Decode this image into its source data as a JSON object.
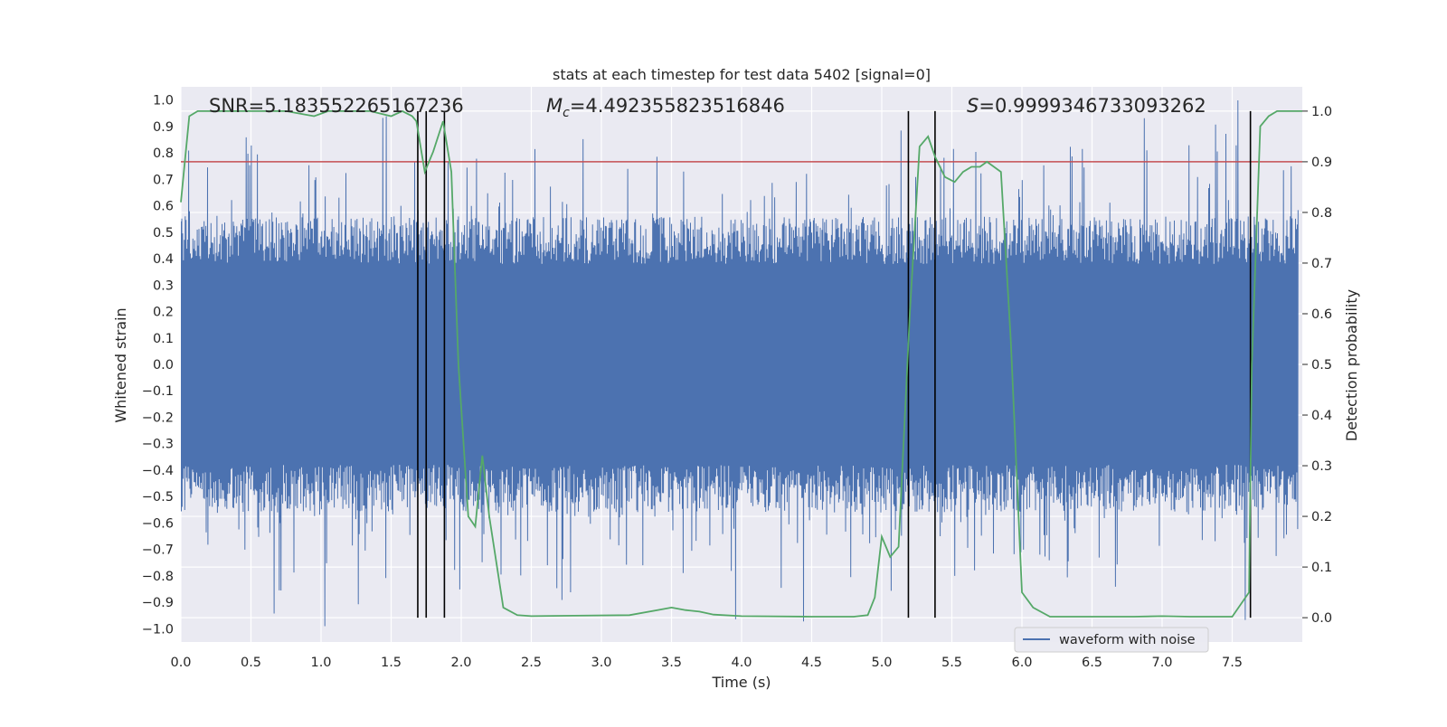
{
  "chart_data": {
    "type": "line",
    "title": "stats at each timestep for test data 5402 [signal=0]",
    "xlabel": "Time (s)",
    "ylabel_left": "Whitened strain",
    "ylabel_right": "Detection probability",
    "xlim": [
      0.0,
      8.0
    ],
    "ylim_left": [
      -1.05,
      1.05
    ],
    "ylim_right": [
      -0.048,
      1.048
    ],
    "x_ticks": [
      "0.0",
      "0.5",
      "1.0",
      "1.5",
      "2.0",
      "2.5",
      "3.0",
      "3.5",
      "4.0",
      "4.5",
      "5.0",
      "5.5",
      "6.0",
      "6.5",
      "7.0",
      "7.5"
    ],
    "x_tick_values": [
      0.0,
      0.5,
      1.0,
      1.5,
      2.0,
      2.5,
      3.0,
      3.5,
      4.0,
      4.5,
      5.0,
      5.5,
      6.0,
      6.5,
      7.0,
      7.5
    ],
    "y_left_ticks": [
      "1.0",
      "0.9",
      "0.8",
      "0.7",
      "0.6",
      "0.5",
      "0.4",
      "0.3",
      "0.2",
      "0.1",
      "0.0",
      "−0.1",
      "−0.2",
      "−0.3",
      "−0.4",
      "−0.5",
      "−0.6",
      "−0.7",
      "−0.8",
      "−0.9",
      "−1.0"
    ],
    "y_left_tick_values": [
      1.0,
      0.9,
      0.8,
      0.7,
      0.6,
      0.5,
      0.4,
      0.3,
      0.2,
      0.1,
      0.0,
      -0.1,
      -0.2,
      -0.3,
      -0.4,
      -0.5,
      -0.6,
      -0.7,
      -0.8,
      -0.9,
      -1.0
    ],
    "y_right_ticks": [
      "1.0",
      "0.9",
      "0.8",
      "0.7",
      "0.6",
      "0.5",
      "0.4",
      "0.3",
      "0.2",
      "0.1",
      "0.0"
    ],
    "y_right_tick_values": [
      1.0,
      0.9,
      0.8,
      0.7,
      0.6,
      0.5,
      0.4,
      0.3,
      0.2,
      0.1,
      0.0
    ],
    "annotations": {
      "snr": "SNR=5.183552265167236",
      "mc_symbol": "M",
      "mc_sub": "c",
      "mc_value": "=4.492355823516846",
      "s_symbol": "S",
      "s_value": "=0.9999346733093262"
    },
    "legend": {
      "label": "waveform with noise",
      "position": "lower-right"
    },
    "series": [
      {
        "name": "waveform with noise",
        "axis": "left",
        "color": "#4c72b0",
        "note": "noise trace, generated",
        "amplitude_envelope": [
          -1.0,
          1.0
        ]
      },
      {
        "name": "detection probability",
        "axis": "right",
        "color": "#55a868",
        "x": [
          0.0,
          0.06,
          0.12,
          0.25,
          0.5,
          0.75,
          0.95,
          1.05,
          1.2,
          1.35,
          1.5,
          1.58,
          1.65,
          1.68,
          1.74,
          1.8,
          1.87,
          1.93,
          1.98,
          2.05,
          2.1,
          2.15,
          2.2,
          2.3,
          2.4,
          2.5,
          2.8,
          3.2,
          3.4,
          3.5,
          3.6,
          3.7,
          3.8,
          4.0,
          4.5,
          4.8,
          4.9,
          4.95,
          5.0,
          5.06,
          5.12,
          5.2,
          5.27,
          5.33,
          5.38,
          5.45,
          5.52,
          5.58,
          5.64,
          5.7,
          5.75,
          5.85,
          5.92,
          6.0,
          6.08,
          6.2,
          6.5,
          6.8,
          7.0,
          7.2,
          7.5,
          7.62,
          7.64,
          7.7,
          7.76,
          7.82,
          7.9,
          8.0
        ],
        "values": [
          0.82,
          0.99,
          1.0,
          1.0,
          1.0,
          1.0,
          0.99,
          1.0,
          1.0,
          1.0,
          0.99,
          1.0,
          0.99,
          0.98,
          0.88,
          0.92,
          0.98,
          0.88,
          0.5,
          0.2,
          0.18,
          0.32,
          0.2,
          0.02,
          0.005,
          0.003,
          0.004,
          0.005,
          0.015,
          0.02,
          0.015,
          0.012,
          0.006,
          0.003,
          0.002,
          0.002,
          0.005,
          0.04,
          0.16,
          0.12,
          0.14,
          0.6,
          0.93,
          0.95,
          0.91,
          0.87,
          0.86,
          0.88,
          0.89,
          0.89,
          0.9,
          0.88,
          0.55,
          0.05,
          0.02,
          0.002,
          0.002,
          0.002,
          0.003,
          0.002,
          0.002,
          0.05,
          0.5,
          0.97,
          0.99,
          1.0,
          1.0,
          1.0
        ]
      },
      {
        "name": "threshold",
        "axis": "right",
        "color": "#c44e52",
        "value": 0.9
      }
    ],
    "vertical_lines_x": [
      1.69,
      1.75,
      1.88,
      5.19,
      5.38,
      7.63
    ]
  }
}
